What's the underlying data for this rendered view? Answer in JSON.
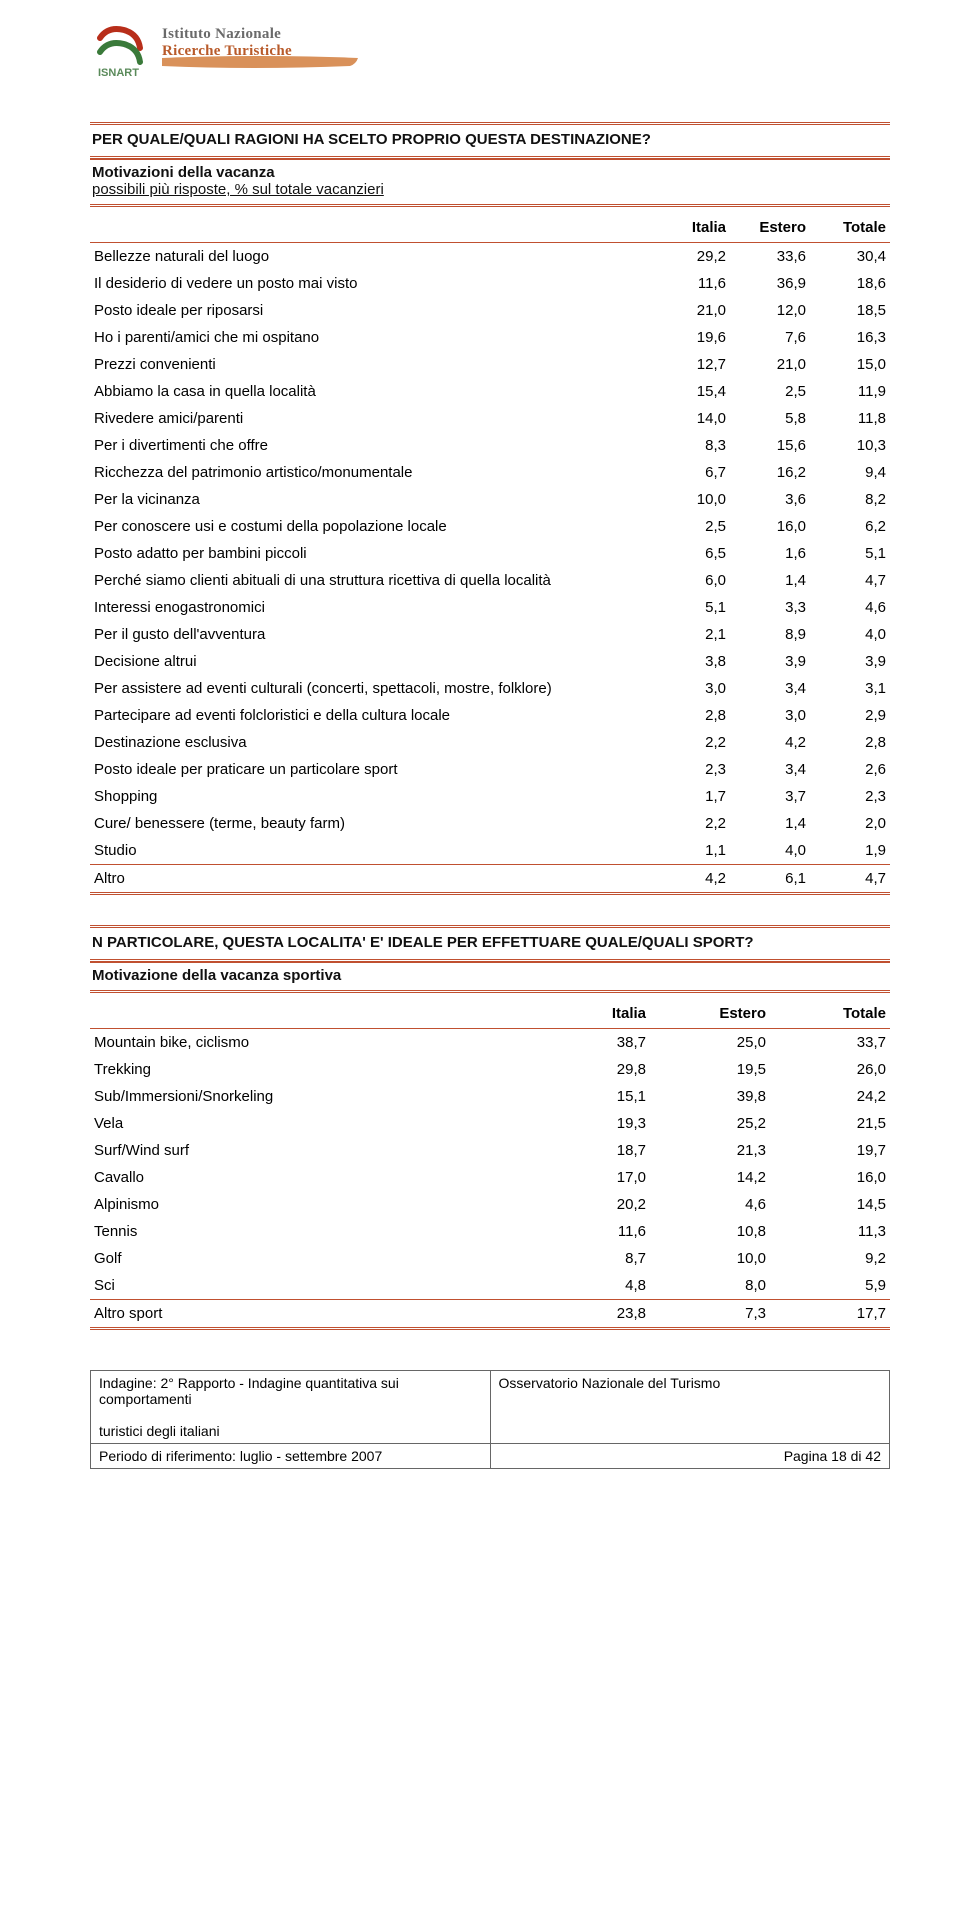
{
  "logo": {
    "line1": "Istituto Nazionale",
    "line2": "Ricerche Turistiche",
    "isnart": "ISNART",
    "mark_color_red": "#b82e1a",
    "mark_color_green": "#3a7a3a",
    "swoosh_color": "#d9915a"
  },
  "accent_color": "#c05030",
  "table1": {
    "title": "PER QUALE/QUALI RAGIONI HA SCELTO PROPRIO QUESTA DESTINAZIONE?",
    "subtitle_bold": "Motivazioni della vacanza",
    "subtitle_under": "possibili più risposte, % sul totale vacanzieri",
    "columns": [
      "Italia",
      "Estero",
      "Totale"
    ],
    "rows": [
      {
        "label": "Bellezze naturali del luogo",
        "v": [
          "29,2",
          "33,6",
          "30,4"
        ]
      },
      {
        "label": "Il desiderio di vedere un posto mai visto",
        "v": [
          "11,6",
          "36,9",
          "18,6"
        ]
      },
      {
        "label": "Posto ideale per riposarsi",
        "v": [
          "21,0",
          "12,0",
          "18,5"
        ]
      },
      {
        "label": "Ho i parenti/amici che mi ospitano",
        "v": [
          "19,6",
          "7,6",
          "16,3"
        ]
      },
      {
        "label": "Prezzi convenienti",
        "v": [
          "12,7",
          "21,0",
          "15,0"
        ]
      },
      {
        "label": "Abbiamo la casa in quella località",
        "v": [
          "15,4",
          "2,5",
          "11,9"
        ]
      },
      {
        "label": "Rivedere amici/parenti",
        "v": [
          "14,0",
          "5,8",
          "11,8"
        ]
      },
      {
        "label": "Per i divertimenti che offre",
        "v": [
          "8,3",
          "15,6",
          "10,3"
        ]
      },
      {
        "label": "Ricchezza del patrimonio artistico/monumentale",
        "v": [
          "6,7",
          "16,2",
          "9,4"
        ]
      },
      {
        "label": "Per la vicinanza",
        "v": [
          "10,0",
          "3,6",
          "8,2"
        ]
      },
      {
        "label": "Per conoscere usi e costumi della popolazione locale",
        "v": [
          "2,5",
          "16,0",
          "6,2"
        ]
      },
      {
        "label": "Posto adatto per bambini piccoli",
        "v": [
          "6,5",
          "1,6",
          "5,1"
        ]
      },
      {
        "label": "Perché siamo clienti abituali di una struttura ricettiva di quella località",
        "v": [
          "6,0",
          "1,4",
          "4,7"
        ]
      },
      {
        "label": "Interessi enogastronomici",
        "v": [
          "5,1",
          "3,3",
          "4,6"
        ]
      },
      {
        "label": "Per il gusto dell'avventura",
        "v": [
          "2,1",
          "8,9",
          "4,0"
        ]
      },
      {
        "label": "Decisione altrui",
        "v": [
          "3,8",
          "3,9",
          "3,9"
        ]
      },
      {
        "label": "Per assistere ad eventi culturali (concerti, spettacoli, mostre, folklore)",
        "v": [
          "3,0",
          "3,4",
          "3,1"
        ]
      },
      {
        "label": "Partecipare ad eventi folcloristici e della cultura locale",
        "v": [
          "2,8",
          "3,0",
          "2,9"
        ]
      },
      {
        "label": "Destinazione esclusiva",
        "v": [
          "2,2",
          "4,2",
          "2,8"
        ]
      },
      {
        "label": "Posto ideale per praticare un particolare sport",
        "v": [
          "2,3",
          "3,4",
          "2,6"
        ]
      },
      {
        "label": "Shopping",
        "v": [
          "1,7",
          "3,7",
          "2,3"
        ]
      },
      {
        "label": "Cure/ benessere (terme, beauty farm)",
        "v": [
          "2,2",
          "1,4",
          "2,0"
        ]
      },
      {
        "label": "Studio",
        "v": [
          "1,1",
          "4,0",
          "1,9"
        ]
      },
      {
        "label": "Altro",
        "v": [
          "4,2",
          "6,1",
          "4,7"
        ]
      }
    ]
  },
  "table2": {
    "title": "N PARTICOLARE, QUESTA LOCALITA' E' IDEALE PER EFFETTUARE QUALE/QUALI SPORT?",
    "subtitle_bold": "Motivazione della vacanza sportiva",
    "columns": [
      "Italia",
      "Estero",
      "Totale"
    ],
    "rows": [
      {
        "label": "Mountain bike, ciclismo",
        "v": [
          "38,7",
          "25,0",
          "33,7"
        ]
      },
      {
        "label": "Trekking",
        "v": [
          "29,8",
          "19,5",
          "26,0"
        ]
      },
      {
        "label": "Sub/Immersioni/Snorkeling",
        "v": [
          "15,1",
          "39,8",
          "24,2"
        ]
      },
      {
        "label": "Vela",
        "v": [
          "19,3",
          "25,2",
          "21,5"
        ]
      },
      {
        "label": "Surf/Wind surf",
        "v": [
          "18,7",
          "21,3",
          "19,7"
        ]
      },
      {
        "label": "Cavallo",
        "v": [
          "17,0",
          "14,2",
          "16,0"
        ]
      },
      {
        "label": "Alpinismo",
        "v": [
          "20,2",
          "4,6",
          "14,5"
        ]
      },
      {
        "label": "Tennis",
        "v": [
          "11,6",
          "10,8",
          "11,3"
        ]
      },
      {
        "label": "Golf",
        "v": [
          "8,7",
          "10,0",
          "9,2"
        ]
      },
      {
        "label": "Sci",
        "v": [
          "4,8",
          "8,0",
          "5,9"
        ]
      },
      {
        "label": "Altro sport",
        "v": [
          "23,8",
          "7,3",
          "17,7"
        ]
      }
    ]
  },
  "footer": {
    "left1a": "Indagine:  2° Rapporto - Indagine quantitativa sui comportamenti",
    "left1b": "turistici degli italiani",
    "right1": "Osservatorio Nazionale del Turismo",
    "left2": "Periodo di riferimento:  luglio - settembre 2007",
    "right2": "Pagina 18 di 42"
  }
}
